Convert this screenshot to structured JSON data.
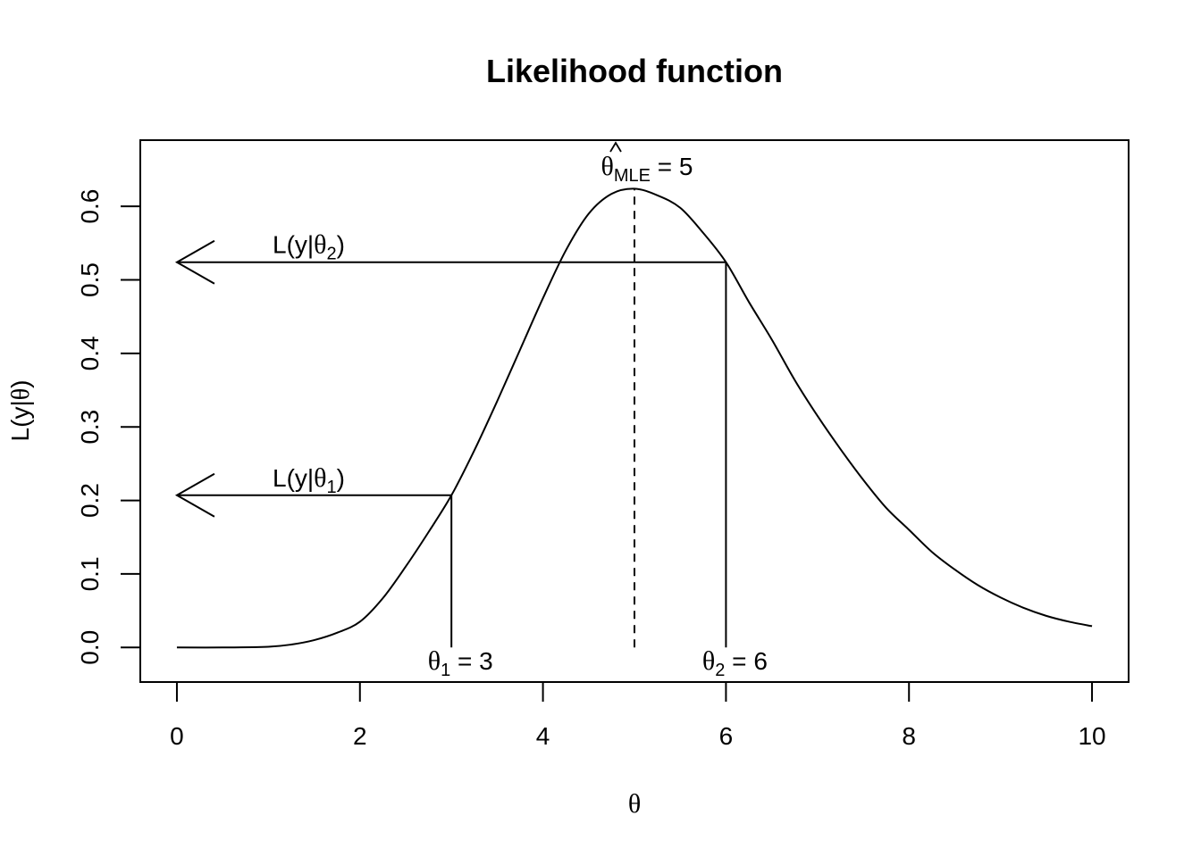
{
  "chart_data": {
    "type": "line",
    "title": "Likelihood function",
    "xlabel": "θ",
    "ylabel": {
      "prefix": "L(y|",
      "symbol": "θ",
      "suffix": ")"
    },
    "xlim": [
      -0.4,
      10.4
    ],
    "ylim": [
      -0.047,
      0.69
    ],
    "x_ticks": [
      0,
      2,
      4,
      6,
      8,
      10
    ],
    "y_ticks": [
      0.0,
      0.1,
      0.2,
      0.3,
      0.4,
      0.5,
      0.6
    ],
    "x_tick_labels": [
      "0",
      "2",
      "4",
      "6",
      "8",
      "10"
    ],
    "y_tick_labels": [
      "0.0",
      "0.1",
      "0.2",
      "0.3",
      "0.4",
      "0.5",
      "0.6"
    ],
    "grid": false,
    "series": [
      {
        "x": [
          0,
          0.5,
          1,
          1.25,
          1.5,
          1.75,
          2,
          2.25,
          2.5,
          2.75,
          3,
          3.25,
          3.5,
          3.75,
          4,
          4.25,
          4.5,
          4.75,
          5,
          5.25,
          5.5,
          5.75,
          6,
          6.25,
          6.5,
          6.75,
          7,
          7.25,
          7.5,
          7.75,
          8,
          8.25,
          8.5,
          8.75,
          9,
          9.25,
          9.5,
          9.75,
          10
        ],
        "y": [
          0.0,
          0.0,
          0.001,
          0.004,
          0.01,
          0.02,
          0.035,
          0.067,
          0.11,
          0.157,
          0.207,
          0.268,
          0.335,
          0.405,
          0.475,
          0.54,
          0.59,
          0.617,
          0.624,
          0.615,
          0.598,
          0.564,
          0.524,
          0.47,
          0.419,
          0.364,
          0.315,
          0.27,
          0.228,
          0.19,
          0.16,
          0.13,
          0.106,
          0.085,
          0.068,
          0.054,
          0.043,
          0.035,
          0.029
        ]
      }
    ],
    "mle": {
      "x": 5,
      "y": 0.624,
      "label_symbol": "θ",
      "label_sub": "MLE",
      "label_suffix": " = 5"
    },
    "points": [
      {
        "x": 3,
        "y": 0.207,
        "sym": "θ",
        "sub": "1",
        "suffix": " = 3",
        "lik_prefix": "L(y|",
        "lik_sym": "θ",
        "lik_sub": "1",
        "lik_suffix": ")"
      },
      {
        "x": 6,
        "y": 0.524,
        "sym": "θ",
        "sub": "2",
        "suffix": " = 6",
        "lik_prefix": "L(y|",
        "lik_sym": "θ",
        "lik_sub": "2",
        "lik_suffix": ")"
      }
    ]
  }
}
